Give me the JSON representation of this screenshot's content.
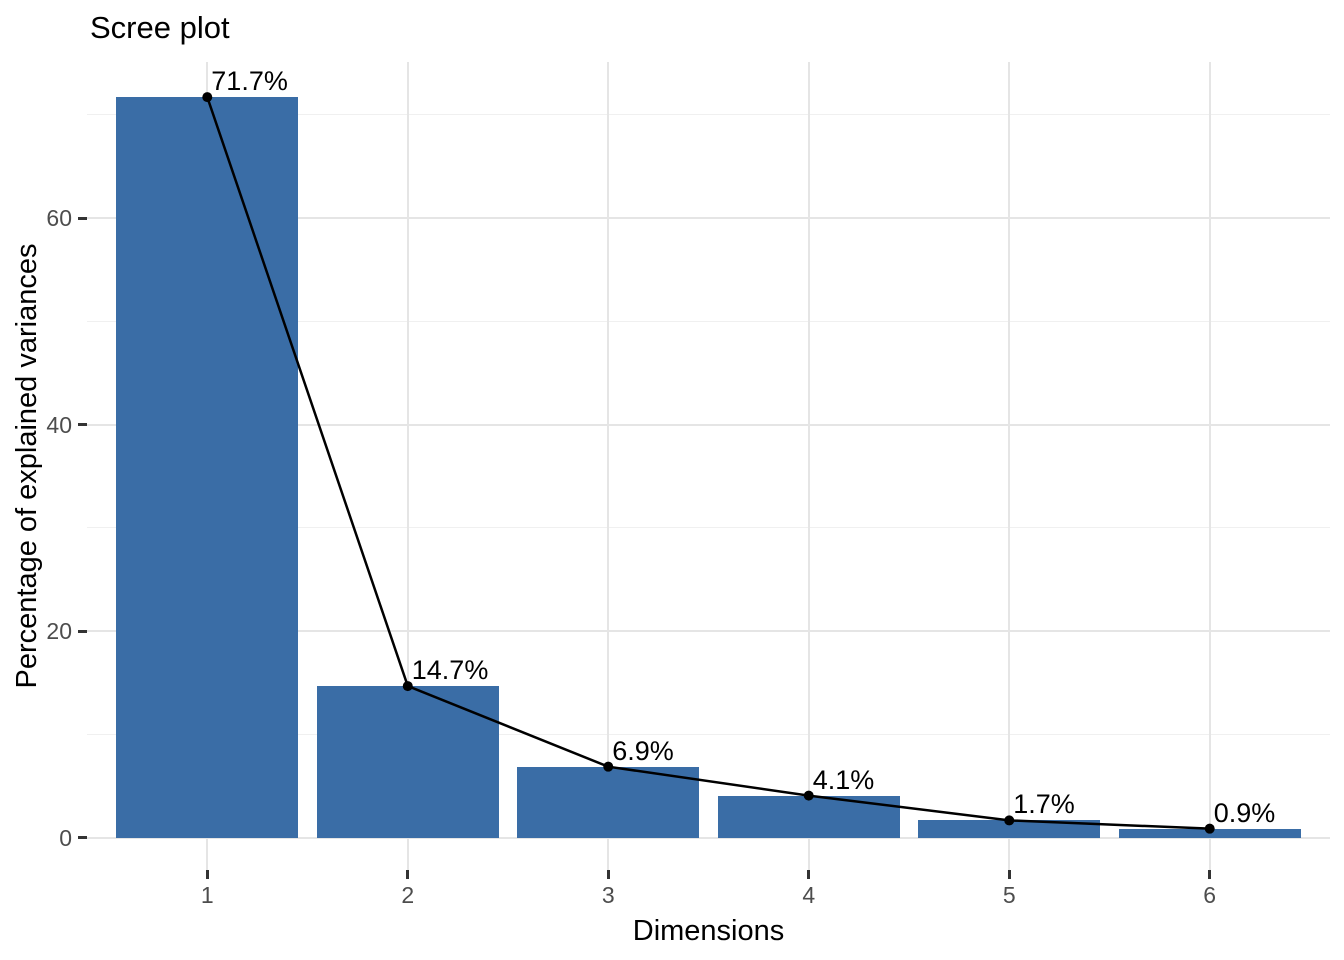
{
  "chart_data": {
    "type": "bar",
    "subtype": "scree-plot-bars-with-line",
    "title": "Scree plot",
    "xlabel": "Dimensions",
    "ylabel": "Percentage of explained variances",
    "categories": [
      "1",
      "2",
      "3",
      "4",
      "5",
      "6"
    ],
    "x": [
      1,
      2,
      3,
      4,
      5,
      6
    ],
    "series": [
      {
        "name": "explained-variance-bars",
        "type": "bar",
        "values": [
          71.7,
          14.7,
          6.9,
          4.1,
          1.7,
          0.9
        ]
      },
      {
        "name": "explained-variance-line",
        "type": "line",
        "values": [
          71.7,
          14.7,
          6.9,
          4.1,
          1.7,
          0.9
        ]
      }
    ],
    "point_labels": [
      "71.7%",
      "14.7%",
      "6.9%",
      "4.1%",
      "1.7%",
      "0.9%"
    ],
    "xlim": [
      0.4,
      6.6
    ],
    "ylim": [
      -3.1,
      75.1
    ],
    "y_ticks": [
      0,
      20,
      40,
      60
    ],
    "y_tick_labels": [
      "0",
      "20",
      "40",
      "60"
    ],
    "y_minor_gridlines": [
      10,
      30,
      50,
      70
    ],
    "grid": "horizontal major+minor, vertical major only",
    "legend": "none",
    "colors": {
      "bar_fill": "#3A6DA6",
      "line": "#000000",
      "point": "#000000",
      "major_grid": "#E5E5E5",
      "minor_grid": "#F0F0F0",
      "axis_tick": "#333333",
      "axis_text": "#4D4D4D",
      "title_text": "#000000",
      "background": "#FFFFFF"
    }
  }
}
